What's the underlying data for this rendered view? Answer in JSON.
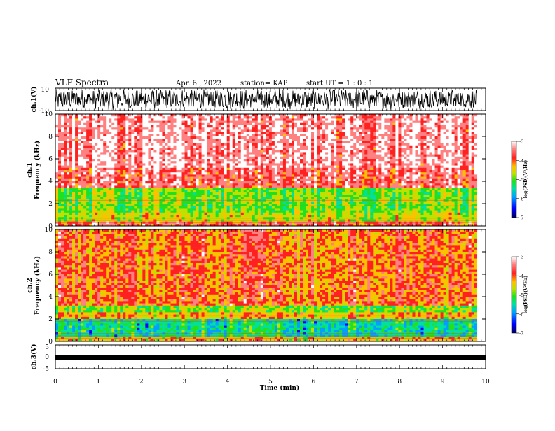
{
  "header": {
    "title": "VLF Spectra",
    "date": "Apr. 6 , 2022",
    "station": "station= KAP",
    "start_ut": "start  UT =   1 : 0  : 1"
  },
  "chart_data": [
    {
      "type": "line",
      "panel": "ch1-waveform",
      "ylabel": "ch.1(V)",
      "ylim": [
        -10,
        10
      ],
      "yticks": [
        "10",
        "-10"
      ],
      "xlim": [
        0,
        10
      ],
      "note_values": "dense noisy waveform spanning roughly -9 to 9 V over 0 to 9.8 min"
    },
    {
      "type": "heatmap",
      "panel": "ch1-spectrogram",
      "ylabel": "Frequency (kHz)",
      "panel_label": "ch.1",
      "ylim": [
        0,
        10
      ],
      "yticks": [
        "0",
        "2",
        "4",
        "6",
        "8",
        "10"
      ],
      "xlim": [
        0,
        9.8
      ],
      "colorbar": {
        "label": "log(PSD)(V²/Hz)",
        "range": [
          -7,
          -3
        ],
        "ticks": [
          "-3",
          "-4",
          "-5",
          "-6",
          "-7"
        ]
      },
      "bands_log_psd": [
        {
          "freq_khz": [
            0,
            0.5
          ],
          "value": -3.8
        },
        {
          "freq_khz": [
            0.5,
            1.2
          ],
          "value": -4.7
        },
        {
          "freq_khz": [
            1.2,
            3.5
          ],
          "value": -5.0
        },
        {
          "freq_khz": [
            3.5,
            5.2
          ],
          "value": -3.6
        },
        {
          "freq_khz": [
            5.2,
            10
          ],
          "value": -3.3
        }
      ]
    },
    {
      "type": "heatmap",
      "panel": "ch2-spectrogram",
      "ylabel": "Frequency (kHz)",
      "panel_label": "ch.2",
      "ylim": [
        0,
        10
      ],
      "yticks": [
        "0",
        "2",
        "4",
        "6",
        "8",
        "10"
      ],
      "xlim": [
        0,
        9.8
      ],
      "colorbar": {
        "label": "log(PSD)(V²/Hz)",
        "range": [
          -7,
          -3
        ],
        "ticks": [
          "-3",
          "-4",
          "-5",
          "-6",
          "-7"
        ]
      },
      "bands_log_psd": [
        {
          "freq_khz": [
            0,
            0.4
          ],
          "value": -4.4
        },
        {
          "freq_khz": [
            0.4,
            2.0
          ],
          "value": -5.6
        },
        {
          "freq_khz": [
            2.0,
            2.6
          ],
          "value": -4.3
        },
        {
          "freq_khz": [
            2.6,
            3.2
          ],
          "value": -5.0
        },
        {
          "freq_khz": [
            3.2,
            10
          ],
          "value": -4.0
        }
      ]
    },
    {
      "type": "line",
      "panel": "ch3-waveform",
      "ylabel": "ch.3(V)",
      "ylim": [
        -5,
        5
      ],
      "yticks": [
        "5",
        "0",
        "-5"
      ],
      "xlim": [
        0,
        10
      ],
      "xlabel": "Time (min)",
      "xticks": [
        "0",
        "1",
        "2",
        "3",
        "4",
        "5",
        "6",
        "7",
        "8",
        "9",
        "10"
      ],
      "note_values": "flat thick trace near 0 V across 0 to 9.8 min"
    }
  ],
  "colors": {
    "cmap": [
      "#000060",
      "#0000ff",
      "#00a0ff",
      "#00e0a0",
      "#20e020",
      "#c0e000",
      "#ffc000",
      "#ff2020",
      "#ff8080",
      "#ffffff"
    ]
  }
}
